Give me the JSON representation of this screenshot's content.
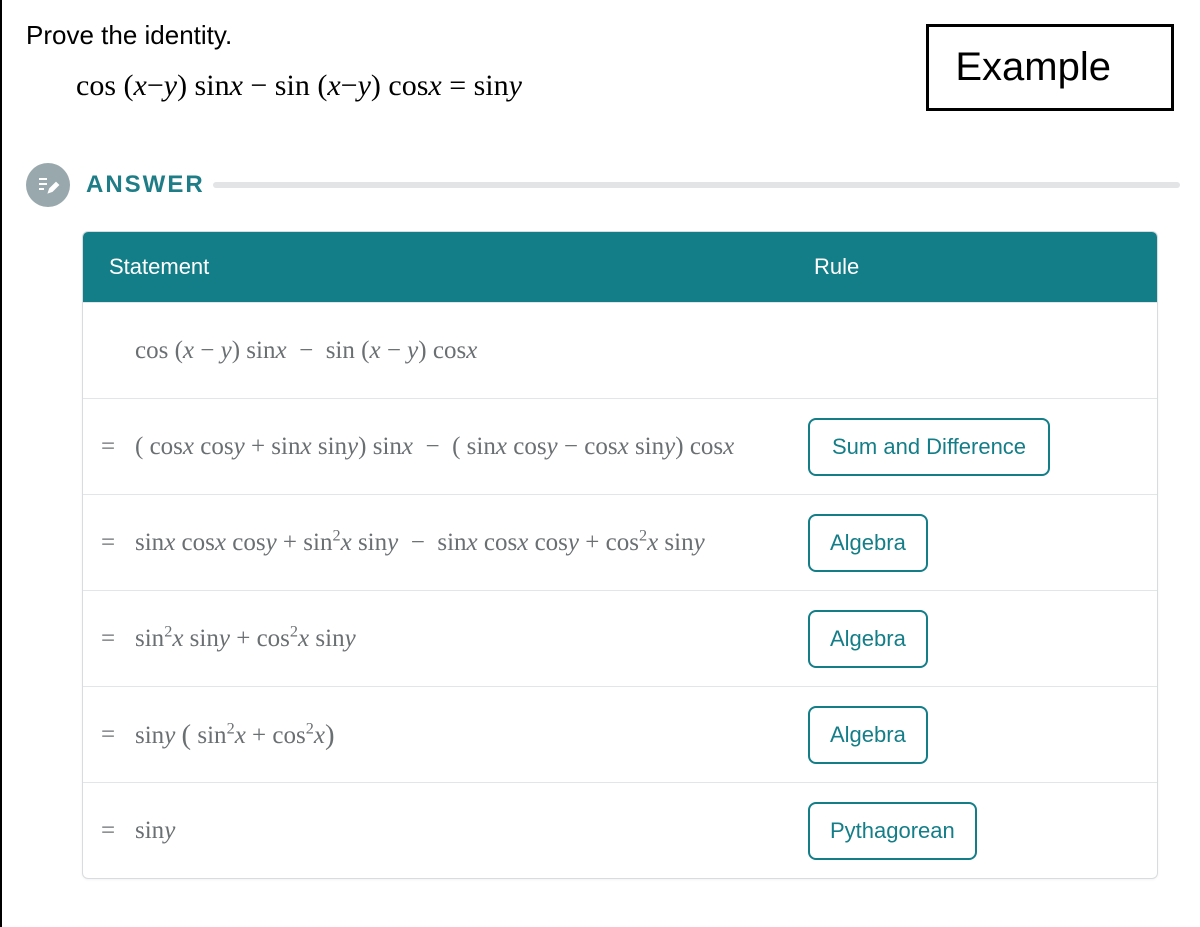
{
  "prompt": {
    "title": "Prove the identity.",
    "identity_html": "cos (<i>x</i>−<i>y</i>) sin<i>x</i> − sin (<i>x</i>−<i>y</i>) cos<i>x</i> = sin<i>y</i>"
  },
  "example_box": {
    "label": "Example"
  },
  "answer": {
    "label": "ANSWER"
  },
  "table": {
    "headers": {
      "statement": "Statement",
      "rule": "Rule"
    },
    "rows": [
      {
        "eq": "",
        "statement_html": "cos (<i>x</i> − <i>y</i>) sin<i>x</i> &nbsp;−&nbsp; sin (<i>x</i> − <i>y</i>) cos<i>x</i>",
        "rule": ""
      },
      {
        "eq": "=",
        "statement_html": "( cos<i>x</i> cos<i>y</i> + sin<i>x</i> sin<i>y</i>) sin<i>x</i> &nbsp;−&nbsp; ( sin<i>x</i> cos<i>y</i> − cos<i>x</i> sin<i>y</i>) cos<i>x</i>",
        "rule": "Sum and Difference"
      },
      {
        "eq": "=",
        "statement_html": "sin<i>x</i> cos<i>x</i> cos<i>y</i> + sin<sup>2</sup><i>x</i> sin<i>y</i> &nbsp;−&nbsp; sin<i>x</i> cos<i>x</i> cos<i>y</i> + cos<sup>2</sup><i>x</i> sin<i>y</i>",
        "rule": "Algebra"
      },
      {
        "eq": "=",
        "statement_html": "sin<sup>2</sup><i>x</i> sin<i>y</i> + cos<sup>2</sup><i>x</i> sin<i>y</i>",
        "rule": "Algebra"
      },
      {
        "eq": "=",
        "statement_html": "sin<i>y</i> <span class=\"paren\">(</span> sin<sup>2</sup><i>x</i> + cos<sup>2</sup><i>x</i><span class=\"paren\">)</span>",
        "rule": "Algebra"
      },
      {
        "eq": "=",
        "statement_html": "sin<i>y</i>",
        "rule": "Pythagorean"
      }
    ]
  },
  "colors": {
    "teal": "#147e88",
    "icon_bg": "#99a8ad",
    "text_gray": "#6a6f72",
    "border_gray": "#e3e6e8"
  }
}
